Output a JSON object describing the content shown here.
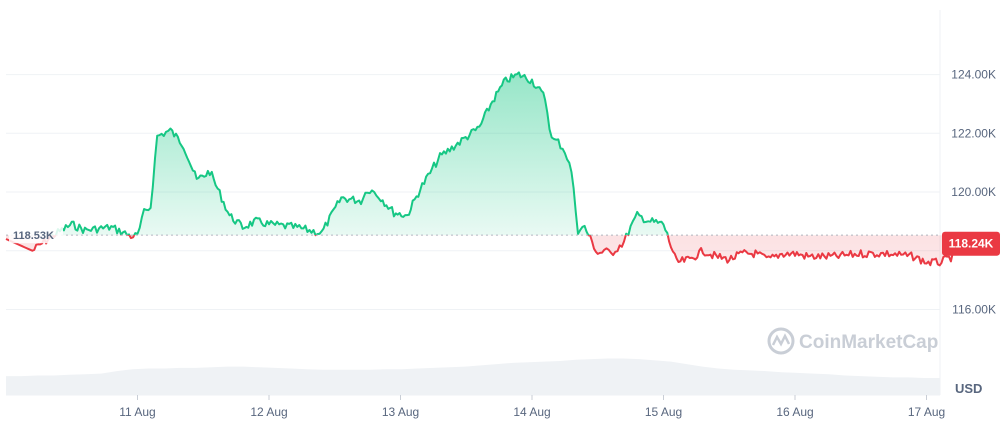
{
  "colors": {
    "up": "#16c784",
    "down": "#ea3943",
    "volume": "#eff2f5",
    "grid": "#eff2f5",
    "ref_line": "#b0b6c0",
    "text": "#58667e",
    "watermark": "#c9ced6"
  },
  "watermark": {
    "text": "CoinMarketCap",
    "icon": "coinmarketcap-logo-icon"
  },
  "chart_data": {
    "type": "area",
    "currency": "USD",
    "ylim": [
      115300,
      126200
    ],
    "yticks": [
      {
        "value": 116000,
        "label": "116.00K"
      },
      {
        "value": 118000,
        "label": ""
      },
      {
        "value": 120000,
        "label": "120.00K"
      },
      {
        "value": 122000,
        "label": "122.00K"
      },
      {
        "value": 124000,
        "label": "124.00K"
      }
    ],
    "xticks": [
      "11 Aug",
      "12 Aug",
      "13 Aug",
      "14 Aug",
      "15 Aug",
      "16 Aug",
      "17 Aug"
    ],
    "reference": {
      "value": 118530,
      "label": "118.53K"
    },
    "current": {
      "value": 118240,
      "label": "118.24K"
    },
    "series": [
      {
        "x": [
          10.0,
          10.2,
          10.35,
          10.5,
          10.6,
          10.8,
          10.95,
          11.0,
          11.05,
          11.1,
          11.15,
          11.2,
          11.25,
          11.35,
          11.45,
          11.55,
          11.7,
          11.8,
          11.9,
          12.0,
          12.2,
          12.4,
          12.55,
          12.7,
          12.75,
          12.8,
          12.85,
          12.95,
          13.05,
          13.15,
          13.3,
          13.45,
          13.6,
          13.7,
          13.8,
          13.9,
          14.0,
          14.1,
          14.15,
          14.2,
          14.25,
          14.3,
          14.35,
          14.4,
          14.5,
          14.55,
          14.6,
          14.65,
          14.7,
          14.75,
          14.8,
          14.85,
          14.9,
          15.0,
          15.1,
          15.2,
          15.3,
          15.4,
          15.5,
          15.6,
          15.7,
          15.75,
          15.8,
          15.9,
          16.0,
          16.1,
          16.3,
          16.5,
          16.7,
          16.9,
          17.0,
          17.1,
          17.2,
          17.3,
          17.32
        ],
        "values": [
          118400,
          118000,
          118500,
          118900,
          118700,
          118800,
          118500,
          118500,
          119300,
          119500,
          121900,
          122000,
          122100,
          121600,
          120400,
          120700,
          119200,
          118800,
          119000,
          118900,
          118800,
          118600,
          119800,
          119700,
          120100,
          120000,
          119800,
          119300,
          119200,
          120100,
          121200,
          121700,
          122200,
          123100,
          123800,
          124000,
          123800,
          123200,
          121800,
          121700,
          121400,
          120700,
          118700,
          118800,
          117900,
          118000,
          117900,
          118100,
          118300,
          118800,
          119200,
          119100,
          119000,
          118900,
          117600,
          117700,
          118000,
          117800,
          117700,
          117900,
          117900,
          117800,
          117700,
          117900,
          117900,
          117800,
          117800,
          117900,
          117900,
          117800,
          117600,
          117600,
          117800,
          118240,
          118240
        ]
      }
    ],
    "volume": [
      0.3,
      0.3,
      0.31,
      0.31,
      0.32,
      0.33,
      0.34,
      0.38,
      0.41,
      0.42,
      0.42,
      0.43,
      0.43,
      0.44,
      0.45,
      0.45,
      0.44,
      0.43,
      0.42,
      0.41,
      0.4,
      0.4,
      0.4,
      0.4,
      0.41,
      0.41,
      0.42,
      0.43,
      0.44,
      0.45,
      0.47,
      0.49,
      0.51,
      0.52,
      0.53,
      0.54,
      0.56,
      0.57,
      0.58,
      0.58,
      0.57,
      0.55,
      0.53,
      0.49,
      0.45,
      0.42,
      0.4,
      0.39,
      0.38,
      0.36,
      0.35,
      0.34,
      0.33,
      0.31,
      0.3,
      0.29,
      0.28,
      0.28,
      0.27,
      0.27
    ]
  }
}
